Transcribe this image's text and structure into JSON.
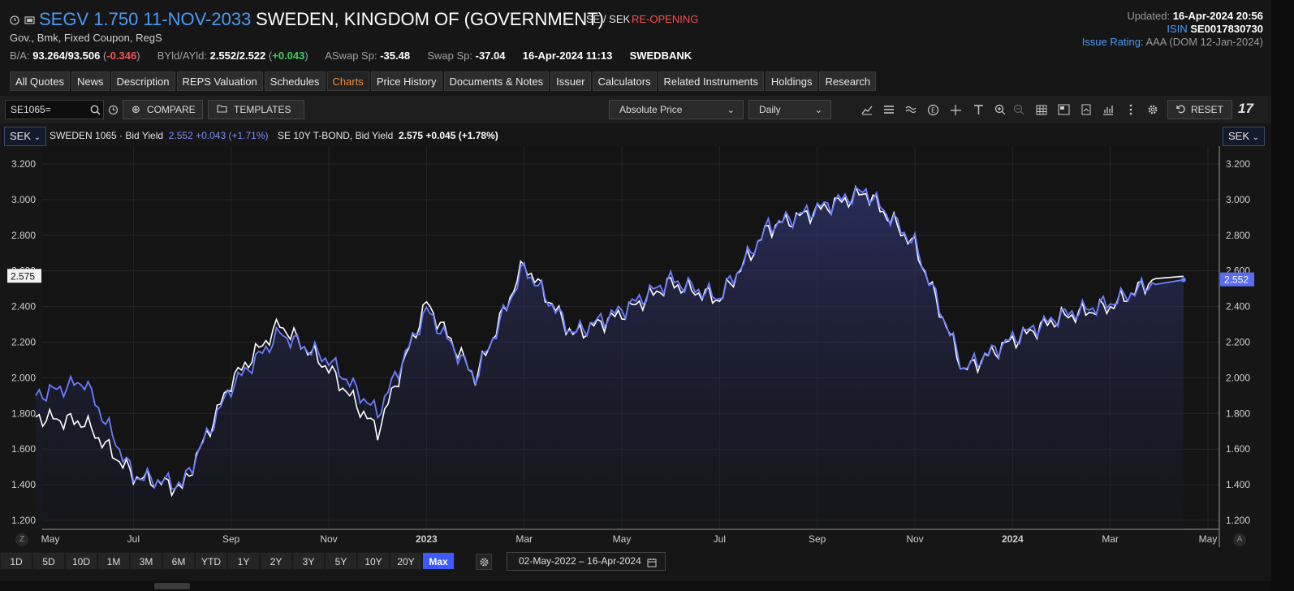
{
  "header": {
    "ric_title": "SEGV 1.750 11-NOV-2033",
    "issuer": "SWEDEN, KINGDOM OF (GOVERNMENT)",
    "currency_pair": "SE / SEK",
    "status": "RE-OPENING",
    "subtitle": "Gov., Bmk, Fixed Coupon, RegS",
    "quote": {
      "ba_label": "B/A:",
      "ba_value": "93.264/93.506",
      "ba_change": "-0.346",
      "yld_label": "BYld/AYld:",
      "yld_value": "2.552/2.522",
      "yld_change": "+0.043",
      "aswap_label": "ASwap Sp:",
      "aswap_value": "-35.48",
      "swap_label": "Swap Sp:",
      "swap_value": "-37.04",
      "datetime": "16-Apr-2024 11:13",
      "source": "SWEDBANK"
    },
    "updated_label": "Updated:",
    "updated_value": "16-Apr-2024 20:56",
    "isin_label": "ISIN",
    "isin_value": "SE0017830730",
    "rating_label": "Issue Rating:",
    "rating_value": "AAA",
    "rating_detail": "(DOM 12-Jan-2024)"
  },
  "tabs": [
    "All Quotes",
    "News",
    "Description",
    "REPS Valuation",
    "Schedules",
    "Charts",
    "Price History",
    "Documents & Notes",
    "Issuer",
    "Calculators",
    "Related Instruments",
    "Holdings",
    "Research"
  ],
  "active_tab": "Charts",
  "toolbar": {
    "ric_input": "SE1065=",
    "compare_label": "COMPARE",
    "templates_label": "TEMPLATES",
    "price_mode": "Absolute Price",
    "interval": "Daily",
    "reset_label": "RESET",
    "tv_logo": "17"
  },
  "legend": {
    "currency_left": "SEK",
    "currency_right": "SEK",
    "s1_name": "SWEDEN 1065 · Bid Yield",
    "s1_value": "2.552",
    "s1_change": "+0.043 (+1.71%)",
    "s2_name": "SE 10Y T-BOND, Bid Yield",
    "s2_value": "2.575",
    "s2_change": "+0.045 (+1.78%)"
  },
  "axis": {
    "left_tag": "2.575",
    "right_tag": "2.552",
    "z_button": "Z",
    "a_button": "A"
  },
  "ranges": [
    "1D",
    "5D",
    "10D",
    "1M",
    "3M",
    "6M",
    "YTD",
    "1Y",
    "2Y",
    "3Y",
    "5Y",
    "10Y",
    "20Y",
    "Max"
  ],
  "active_range": "Max",
  "date_range": "02-May-2022  –  16-Apr-2024",
  "colors": {
    "series_sweden_1065": "#6b7dff",
    "series_se_10y": "#ffffff",
    "active_tab": "#f08a3a",
    "accent": "#3d5afe",
    "negative": "#ff5050",
    "positive": "#3ccf5e"
  },
  "chart_data": {
    "type": "line",
    "title": "",
    "xlabel": "",
    "ylabel": "",
    "ylim": [
      1.15,
      3.3
    ],
    "yticks": [
      "1.200",
      "1.400",
      "1.600",
      "1.800",
      "2.000",
      "2.200",
      "2.400",
      "2.600",
      "2.800",
      "3.000",
      "3.200"
    ],
    "x_tick_labels": [
      "May",
      "Jul",
      "Sep",
      "Nov",
      "2023",
      "Mar",
      "May",
      "Jul",
      "Sep",
      "Nov",
      "2024",
      "Mar",
      "May"
    ],
    "x_start": "2022-05",
    "x_end": "2024-05",
    "x_months": [
      "2022-05",
      "2022-06",
      "2022-07",
      "2022-08",
      "2022-09",
      "2022-10",
      "2022-11",
      "2022-12",
      "2023-01",
      "2023-02",
      "2023-03",
      "2023-04",
      "2023-05",
      "2023-06",
      "2023-07",
      "2023-08",
      "2023-09",
      "2023-10",
      "2023-11",
      "2023-12",
      "2024-01",
      "2024-02",
      "2024-03",
      "2024-04"
    ],
    "series": [
      {
        "name": "SWEDEN 1065 · Bid Yield",
        "values": [
          1.9,
          1.98,
          1.45,
          1.4,
          1.95,
          2.25,
          2.1,
          1.8,
          2.38,
          2.0,
          2.62,
          2.25,
          2.38,
          2.55,
          2.45,
          2.85,
          2.95,
          3.05,
          2.75,
          2.05,
          2.22,
          2.35,
          2.42,
          2.55
        ]
      },
      {
        "name": "SE 10Y T-BOND, Bid Yield",
        "values": [
          1.78,
          1.75,
          1.45,
          1.38,
          1.98,
          2.3,
          2.05,
          1.7,
          2.42,
          2.0,
          2.64,
          2.24,
          2.36,
          2.53,
          2.44,
          2.84,
          2.94,
          3.04,
          2.74,
          2.04,
          2.21,
          2.34,
          2.4,
          2.57
        ]
      }
    ]
  }
}
